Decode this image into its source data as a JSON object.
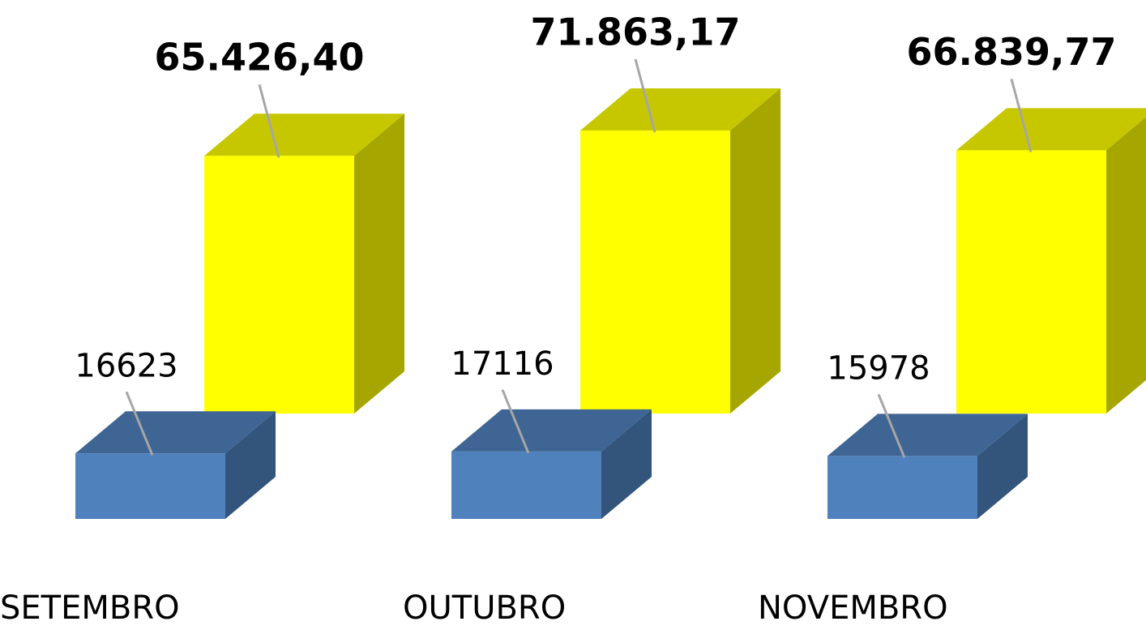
{
  "chart_data": {
    "type": "bar3d",
    "categories": [
      "SETEMBRO",
      "OUTUBRO",
      "NOVEMBRO"
    ],
    "series": [
      {
        "color": "#4f81bd",
        "values": [
          16623,
          17116,
          15978
        ]
      },
      {
        "color": "#ffff00",
        "values": [
          65426.4,
          71863.17,
          66839.77
        ],
        "value_labels": [
          "65.426,40",
          "71.863,17",
          "66.839,77"
        ]
      }
    ],
    "ylim": [
      0,
      70000
    ]
  }
}
